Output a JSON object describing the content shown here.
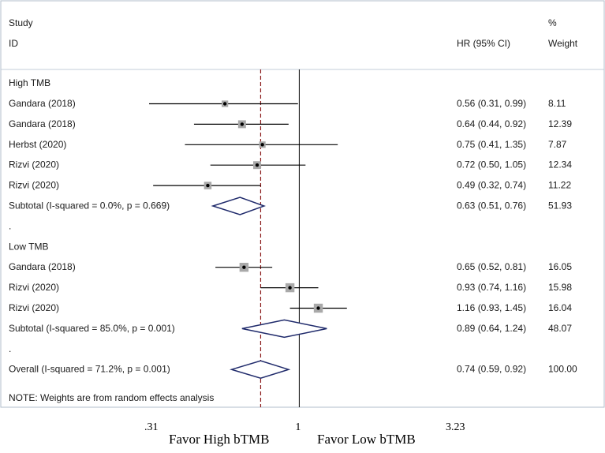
{
  "chart_data": {
    "type": "forest",
    "header": {
      "study": "Study",
      "id": "ID",
      "effect": "HR (95% CI)",
      "weight_pct": "%",
      "weight": "Weight"
    },
    "x_scale": "log",
    "xlim": [
      0.31,
      3.23
    ],
    "ticks": [
      {
        "value": 0.31,
        "label": ".31"
      },
      {
        "value": 1,
        "label": "1"
      },
      {
        "value": 3.23,
        "label": "3.23"
      }
    ],
    "reference_line": 1,
    "overall_line": 0.74,
    "groups": [
      {
        "name": "High TMB",
        "studies": [
          {
            "label": "Gandara (2018)",
            "hr": 0.56,
            "lo": 0.31,
            "hi": 0.99,
            "effect_text": "0.56 (0.31, 0.99)",
            "weight": "8.11"
          },
          {
            "label": "Gandara (2018)",
            "hr": 0.64,
            "lo": 0.44,
            "hi": 0.92,
            "effect_text": "0.64 (0.44, 0.92)",
            "weight": "12.39"
          },
          {
            "label": "Herbst (2020)",
            "hr": 0.75,
            "lo": 0.41,
            "hi": 1.35,
            "effect_text": "0.75 (0.41, 1.35)",
            "weight": "7.87"
          },
          {
            "label": "Rizvi (2020)",
            "hr": 0.72,
            "lo": 0.5,
            "hi": 1.05,
            "effect_text": "0.72 (0.50, 1.05)",
            "weight": "12.34"
          },
          {
            "label": "Rizvi (2020)",
            "hr": 0.49,
            "lo": 0.32,
            "hi": 0.74,
            "effect_text": "0.49 (0.32, 0.74)",
            "weight": "11.22"
          }
        ],
        "subtotal": {
          "label": "Subtotal  (I-squared = 0.0%, p = 0.669)",
          "hr": 0.63,
          "lo": 0.51,
          "hi": 0.76,
          "effect_text": "0.63 (0.51, 0.76)",
          "weight": "51.93"
        }
      },
      {
        "name": "Low TMB",
        "studies": [
          {
            "label": "Gandara (2018)",
            "hr": 0.65,
            "lo": 0.52,
            "hi": 0.81,
            "effect_text": "0.65 (0.52, 0.81)",
            "weight": "16.05"
          },
          {
            "label": "Rizvi (2020)",
            "hr": 0.93,
            "lo": 0.74,
            "hi": 1.16,
            "effect_text": "0.93 (0.74, 1.16)",
            "weight": "15.98"
          },
          {
            "label": "Rizvi (2020)",
            "hr": 1.16,
            "lo": 0.93,
            "hi": 1.45,
            "effect_text": "1.16 (0.93, 1.45)",
            "weight": "16.04"
          }
        ],
        "subtotal": {
          "label": "Subtotal  (I-squared = 85.0%, p = 0.001)",
          "hr": 0.89,
          "lo": 0.64,
          "hi": 1.24,
          "effect_text": "0.89 (0.64, 1.24)",
          "weight": "48.07"
        }
      }
    ],
    "overall": {
      "label": "Overall  (I-squared = 71.2%, p = 0.001)",
      "hr": 0.74,
      "lo": 0.59,
      "hi": 0.92,
      "effect_text": "0.74 (0.59, 0.92)",
      "weight": "100.00"
    },
    "separator_text": ".",
    "note": "NOTE: Weights are from random effects analysis",
    "favor_left": "Favor High bTMB",
    "favor_right": "Favor Low bTMB",
    "colors": {
      "background": "#ffffff",
      "border": "#b0bccb",
      "text": "#1a1a1a",
      "ci_line": "#000000",
      "box": "#a9a9a9",
      "diamond": "#1f2a6b",
      "overall_line": "#8b1a1a"
    }
  }
}
